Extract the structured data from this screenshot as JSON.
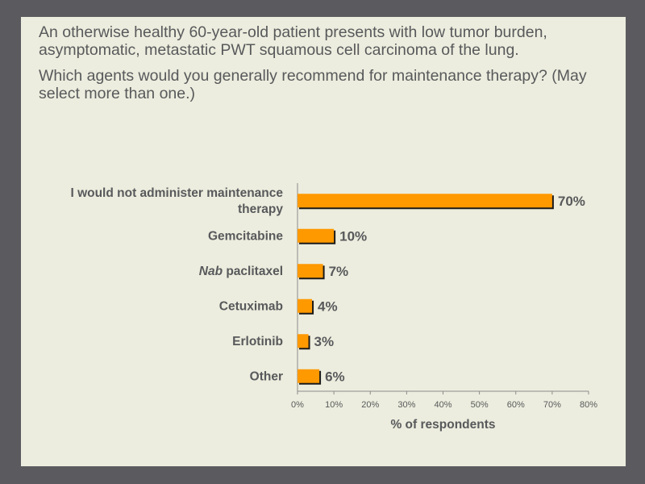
{
  "question": {
    "stem": "An otherwise healthy 60-year-old patient presents with low tumor burden, asymptomatic, metastatic PWT squamous cell carcinoma of the lung.",
    "prompt": "Which agents would you generally recommend for maintenance therapy? (May select more than one.)"
  },
  "chart_data": {
    "type": "bar",
    "orientation": "horizontal",
    "categories": [
      {
        "lines": [
          "I would not administer maintenance",
          "therapy"
        ]
      },
      {
        "lines": [
          "Gemcitabine"
        ]
      },
      {
        "lines": [
          "paclitaxel"
        ],
        "prefix_italic": "Nab"
      },
      {
        "lines": [
          "Cetuximab"
        ]
      },
      {
        "lines": [
          "Erlotinib"
        ]
      },
      {
        "lines": [
          "Other"
        ]
      }
    ],
    "values": [
      70,
      10,
      7,
      4,
      3,
      6
    ],
    "value_labels": [
      "70%",
      "10%",
      "7%",
      "4%",
      "3%",
      "6%"
    ],
    "xlim": [
      0,
      80
    ],
    "xticks": [
      0,
      10,
      20,
      30,
      40,
      50,
      60,
      70,
      80
    ],
    "xtick_labels": [
      "0%",
      "10%",
      "20%",
      "30%",
      "40%",
      "50%",
      "60%",
      "70%",
      "80%"
    ],
    "xlabel": "% of respondents",
    "colors": {
      "bar": "#ff9900",
      "shadow": "#1a1a1a",
      "axis": "#8c8c8c"
    }
  }
}
